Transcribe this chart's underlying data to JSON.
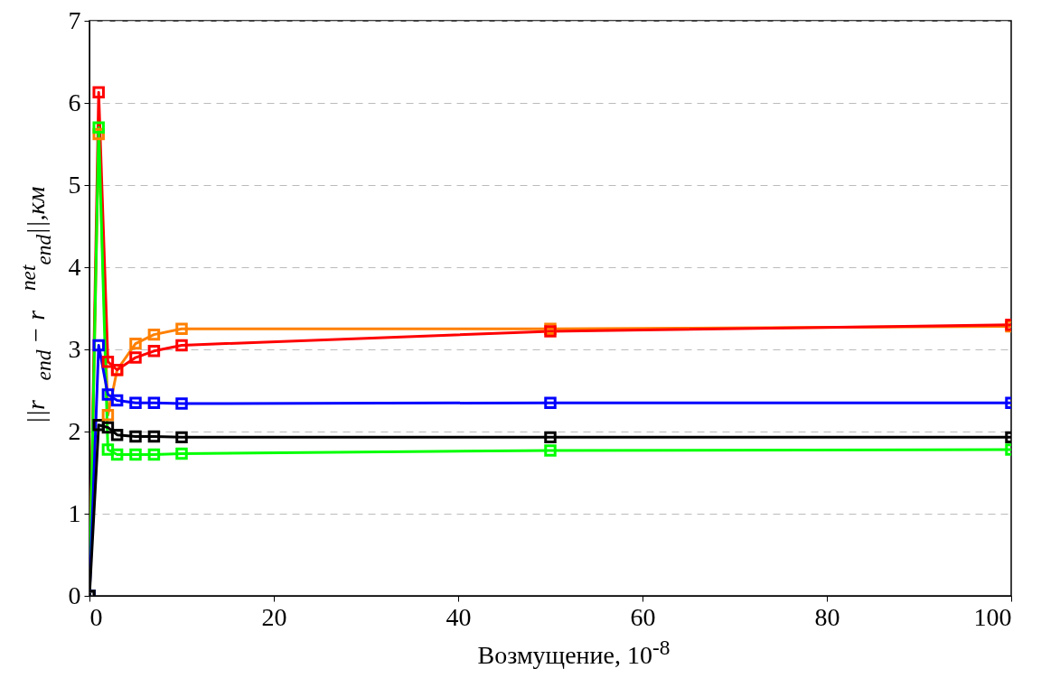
{
  "chart_data": {
    "type": "line",
    "xlabel": "Возмущение, 10$^{-8}$",
    "ylabel": "||r⃗$_{end}$ − r⃗$^{net}$$_{end}$||,км",
    "x": [
      0,
      1,
      2,
      3,
      5,
      7,
      10,
      50,
      100
    ],
    "xlim": [
      0,
      100
    ],
    "xticks": [
      0,
      20,
      40,
      60,
      80,
      100
    ],
    "ylim": [
      0,
      7
    ],
    "yticks": [
      0,
      1,
      2,
      3,
      4,
      5,
      6,
      7
    ],
    "grid": "y",
    "legend": false,
    "marker": "square",
    "line_style": "solid",
    "series": [
      {
        "color": "#ff8000",
        "values": [
          0,
          5.62,
          2.2,
          2.75,
          3.07,
          3.18,
          3.25,
          3.25,
          3.28
        ]
      },
      {
        "color": "#ff0000",
        "values": [
          0,
          6.13,
          2.85,
          2.75,
          2.9,
          2.98,
          3.05,
          3.22,
          3.3
        ]
      },
      {
        "color": "#00ff00",
        "values": [
          0,
          5.7,
          1.78,
          1.72,
          1.72,
          1.72,
          1.73,
          1.77,
          1.78
        ]
      },
      {
        "color": "#0000ff",
        "values": [
          0,
          3.05,
          2.45,
          2.38,
          2.35,
          2.35,
          2.34,
          2.35,
          2.35
        ]
      },
      {
        "color": "#000000",
        "values": [
          0,
          2.08,
          2.05,
          1.96,
          1.94,
          1.94,
          1.93,
          1.93,
          1.93
        ]
      }
    ]
  }
}
